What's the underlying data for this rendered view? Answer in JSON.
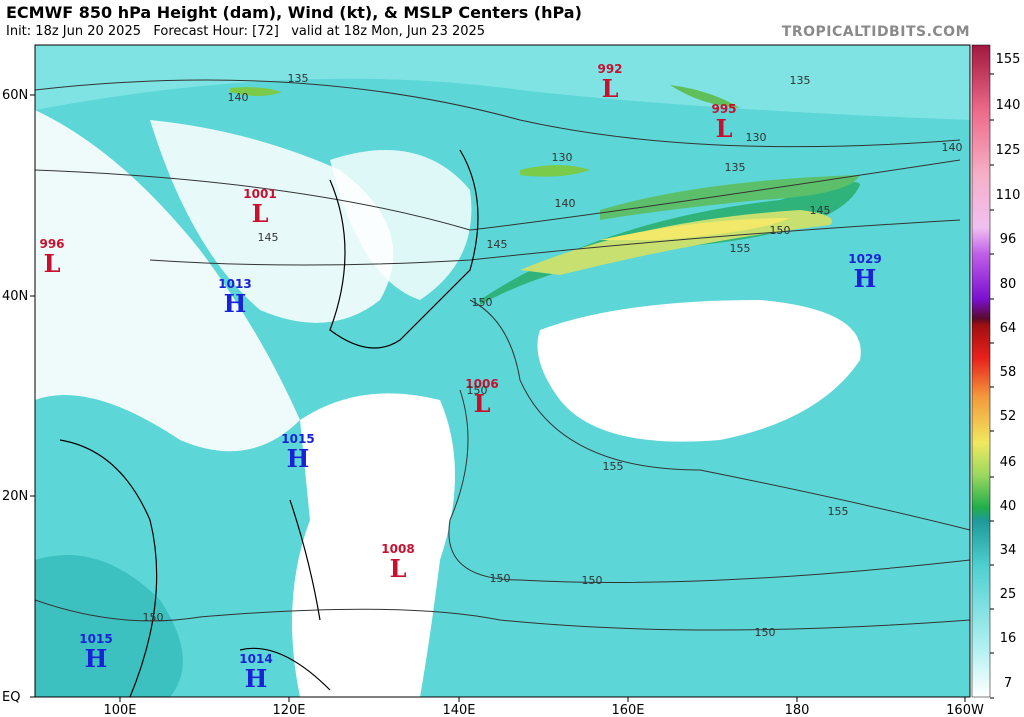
{
  "header": {
    "title": "ECMWF 850 hPa Height (dam), Wind (kt), & MSLP Centers (hPa)",
    "subtitle": "Init: 18z Jun 20 2025   Forecast Hour: [72]   valid at 18z Mon, Jun 23 2025",
    "brand": "TROPICALTIDBITS.COM"
  },
  "map": {
    "lat_labels": [
      "60N",
      "40N",
      "20N",
      "EQ"
    ],
    "lon_labels": [
      "100E",
      "120E",
      "140E",
      "160E",
      "180",
      "160W"
    ],
    "centers": [
      {
        "symbol": "L",
        "value": "992"
      },
      {
        "symbol": "L",
        "value": "995"
      },
      {
        "symbol": "L",
        "value": "1001"
      },
      {
        "symbol": "L",
        "value": "996"
      },
      {
        "symbol": "H",
        "value": "1029"
      },
      {
        "symbol": "H",
        "value": "1013"
      },
      {
        "symbol": "L",
        "value": "1006"
      },
      {
        "symbol": "H",
        "value": "1015"
      },
      {
        "symbol": "L",
        "value": "1008"
      },
      {
        "symbol": "H",
        "value": "1015"
      },
      {
        "symbol": "H",
        "value": "1014"
      }
    ],
    "contour_labels": [
      "135",
      "140",
      "135",
      "130",
      "130",
      "135",
      "140",
      "145",
      "145",
      "145",
      "150",
      "155",
      "140",
      "150",
      "150",
      "155",
      "155",
      "150",
      "150",
      "150",
      "150"
    ]
  },
  "colorbar": {
    "labels": [
      "155",
      "140",
      "125",
      "110",
      "96",
      "80",
      "64",
      "58",
      "52",
      "46",
      "40",
      "34",
      "25",
      "16",
      "7"
    ]
  }
}
